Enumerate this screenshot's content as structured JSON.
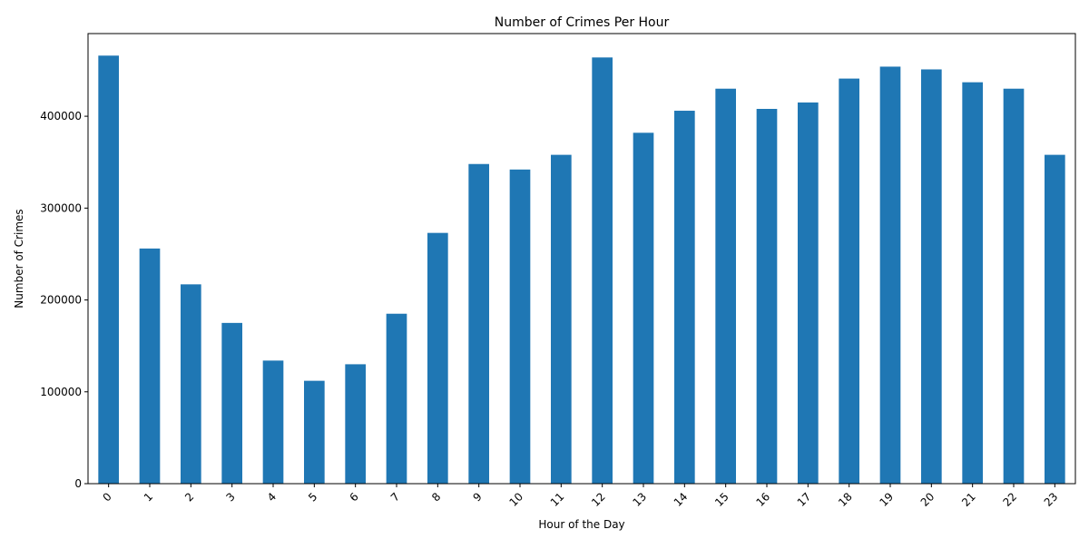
{
  "chart_data": {
    "type": "bar",
    "title": "Number of Crimes Per Hour",
    "xlabel": "Hour of the Day",
    "ylabel": "Number of Crimes",
    "categories": [
      "0",
      "1",
      "2",
      "3",
      "4",
      "5",
      "6",
      "7",
      "8",
      "9",
      "10",
      "11",
      "12",
      "13",
      "14",
      "15",
      "16",
      "17",
      "18",
      "19",
      "20",
      "21",
      "22",
      "23"
    ],
    "values": [
      466000,
      256000,
      217000,
      175000,
      134000,
      112000,
      130000,
      185000,
      273000,
      348000,
      342000,
      358000,
      464000,
      382000,
      406000,
      430000,
      408000,
      415000,
      441000,
      454000,
      451000,
      437000,
      430000,
      358000
    ],
    "ylim": [
      0,
      490000
    ],
    "yticks": [
      0,
      100000,
      200000,
      300000,
      400000
    ],
    "ytick_labels": [
      "0",
      "100000",
      "200000",
      "300000",
      "400000"
    ],
    "x_tick_rotation_deg": 45,
    "bar_color": "#1f77b4",
    "grid": false,
    "legend": "none"
  }
}
